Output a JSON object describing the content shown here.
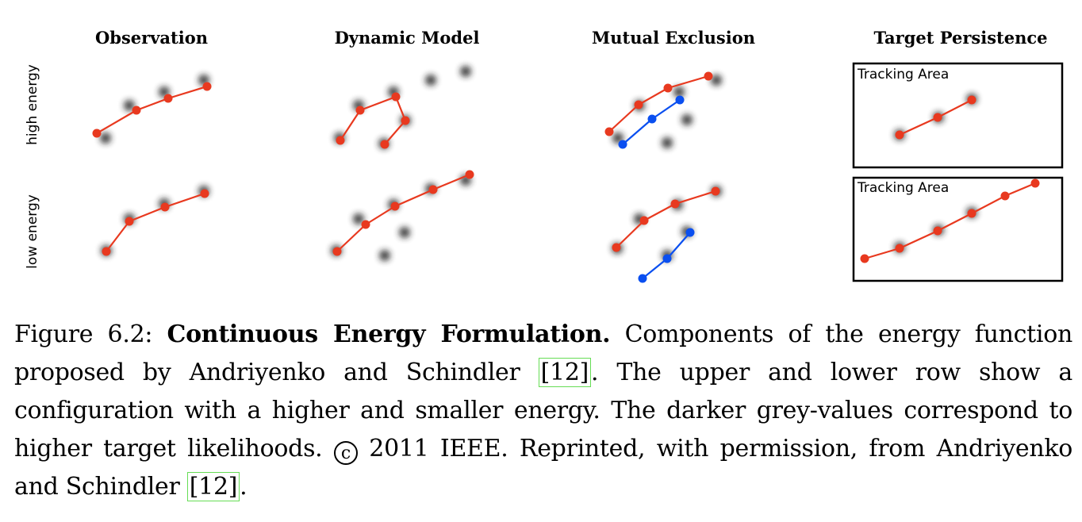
{
  "figure": {
    "columns": [
      "Observation",
      "Dynamic Model",
      "Mutual Exclusion",
      "Target Persistence"
    ],
    "rows": [
      "high  energy",
      "low  energy"
    ],
    "tracking_area_label": "Tracking Area",
    "colors": {
      "red_track": "#e8391f",
      "blue_track": "#0a4ff0",
      "blob": "#202020"
    },
    "panels": [
      {
        "blobs": [
          [
            133,
            174
          ],
          [
            163,
            133
          ],
          [
            207,
            116
          ],
          [
            257,
            101
          ]
        ],
        "tracks": [
          {
            "color": "red",
            "points": [
              [
                122,
                168
              ],
              [
                172,
                139
              ],
              [
                212,
                124
              ],
              [
                261,
                109
              ]
            ]
          }
        ]
      },
      {
        "blobs": [
          [
            428,
            174
          ],
          [
            452,
            133
          ],
          [
            496,
            116
          ],
          [
            511,
            152
          ],
          [
            484,
            181
          ],
          [
            543,
            101
          ],
          [
            587,
            90
          ]
        ],
        "tracks": [
          {
            "color": "red",
            "points": [
              [
                429,
                177
              ],
              [
                454,
                139
              ],
              [
                499,
                122
              ],
              [
                511,
                152
              ],
              [
                485,
                182
              ]
            ]
          }
        ]
      },
      {
        "blobs": [
          [
            779,
            174
          ],
          [
            806,
            133
          ],
          [
            856,
            116
          ],
          [
            866,
            151
          ],
          [
            841,
            180
          ],
          [
            903,
            101
          ]
        ],
        "tracks": [
          {
            "color": "red",
            "points": [
              [
                768,
                166
              ],
              [
                805,
                132
              ],
              [
                842,
                111
              ],
              [
                893,
                96
              ]
            ]
          },
          {
            "color": "blue",
            "points": [
              [
                785,
                182
              ],
              [
                822,
                150
              ],
              [
                857,
                126
              ]
            ]
          }
        ]
      },
      {
        "blobs": [
          [
            1134,
            170
          ],
          [
            1183,
            148
          ],
          [
            1225,
            125
          ]
        ],
        "tracks": [
          {
            "color": "red",
            "points": [
              [
                1134,
                170
              ],
              [
                1182,
                148
              ],
              [
                1225,
                126
              ]
            ]
          }
        ]
      },
      {
        "blobs": [
          [
            134,
            316
          ],
          [
            163,
            276
          ],
          [
            207,
            257
          ],
          [
            257,
            241
          ]
        ],
        "tracks": [
          {
            "color": "red",
            "points": [
              [
                134,
                317
              ],
              [
                163,
                279
              ],
              [
                208,
                261
              ],
              [
                258,
                244
              ]
            ]
          }
        ]
      },
      {
        "blobs": [
          [
            424,
            316
          ],
          [
            452,
            276
          ],
          [
            496,
            258
          ],
          [
            510,
            293
          ],
          [
            485,
            322
          ],
          [
            543,
            238
          ],
          [
            587,
            227
          ]
        ],
        "tracks": [
          {
            "color": "red",
            "points": [
              [
                425,
                317
              ],
              [
                461,
                283
              ],
              [
                498,
                260
              ],
              [
                546,
                239
              ],
              [
                592,
                220
              ]
            ]
          }
        ]
      },
      {
        "blobs": [
          [
            778,
            313
          ],
          [
            806,
            276
          ],
          [
            854,
            258
          ],
          [
            866,
            292
          ],
          [
            841,
            322
          ],
          [
            903,
            241
          ]
        ],
        "tracks": [
          {
            "color": "red",
            "points": [
              [
                777,
                312
              ],
              [
                812,
                278
              ],
              [
                851,
                257
              ],
              [
                902,
                241
              ]
            ]
          },
          {
            "color": "blue",
            "points": [
              [
                810,
                351
              ],
              [
                841,
                326
              ],
              [
                870,
                293
              ]
            ]
          }
        ]
      },
      {
        "blobs": [
          [
            1134,
            312
          ],
          [
            1183,
            290
          ],
          [
            1225,
            268
          ]
        ],
        "tracks": [
          {
            "color": "red",
            "points": [
              [
                1090,
                326
              ],
              [
                1134,
                313
              ],
              [
                1182,
                291
              ],
              [
                1225,
                269
              ],
              [
                1267,
                247
              ],
              [
                1305,
                231
              ]
            ]
          }
        ]
      }
    ]
  },
  "caption": {
    "prefix": "Figure 6.2: ",
    "title": "Continuous Energy Formulation.",
    "body1": " Components of the energy function proposed by Andriyenko and Schindler ",
    "cite1": "[12]",
    "body2": ".  The upper and lower row show a configuration with a higher and smaller energy. The darker grey-values correspond to higher target likelihoods. ",
    "copyright_symbol": "c",
    "body3": " 2011 IEEE. Reprinted, with permission, from Andriyenko and Schindler ",
    "cite2": "[12]",
    "body4": "."
  }
}
